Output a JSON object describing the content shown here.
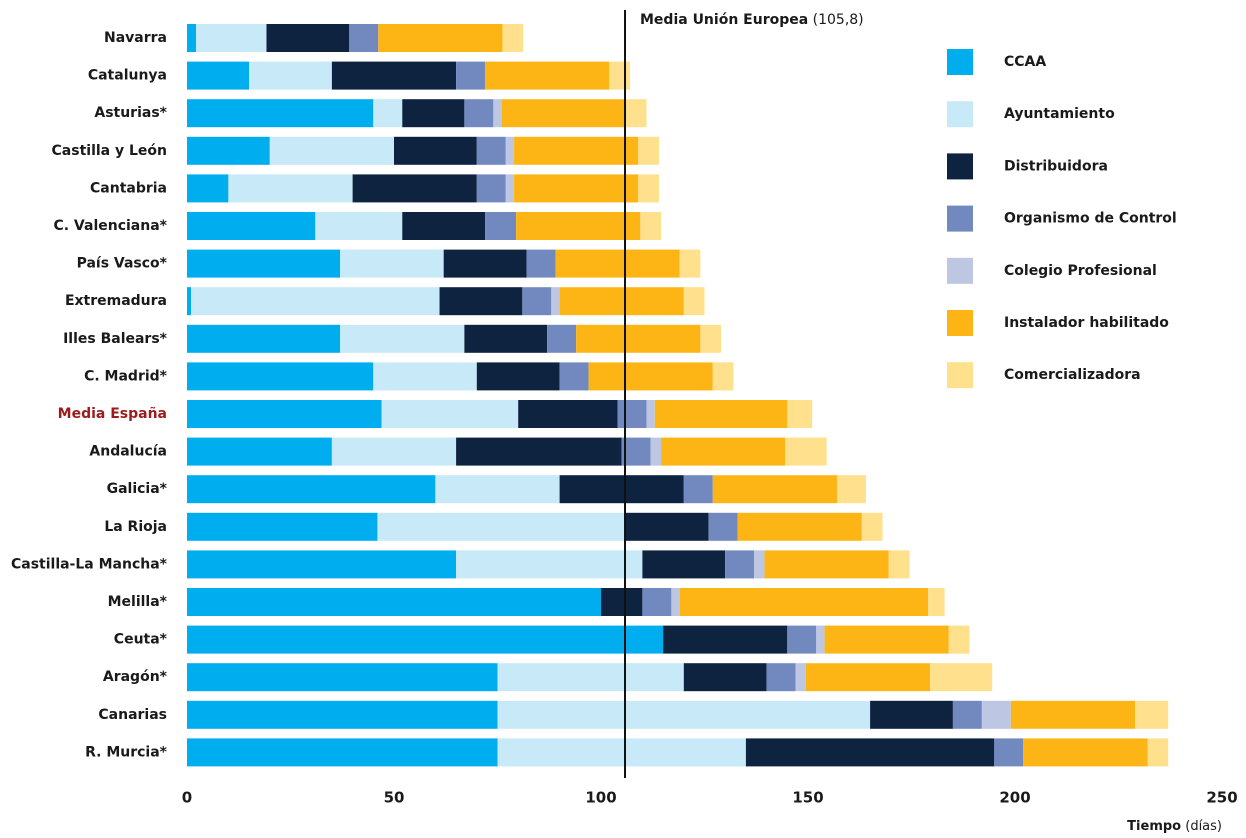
{
  "chart_data": {
    "type": "stacked-barh",
    "categories": [
      "Navarra",
      "Catalunya",
      "Asturias*",
      "Castilla y León",
      "Cantabria",
      "C. Valenciana*",
      "País Vasco*",
      "Extremadura",
      "Illes Balears*",
      "C. Madrid*",
      "Media España",
      "Andalucía",
      "Galicia*",
      "La Rioja",
      "Castilla-La Mancha*",
      "Melilla*",
      "Ceuta*",
      "Aragón*",
      "Canarias",
      "R. Murcia*"
    ],
    "highlight": {
      "index": 10,
      "color": "#9b1c1c"
    },
    "series": [
      {
        "name": "CCAA",
        "color": "#00aeef",
        "values": [
          2.2,
          15,
          45,
          20,
          10,
          31,
          37,
          1,
          37,
          45,
          47,
          35,
          60,
          46,
          65,
          100,
          115,
          75,
          75,
          75
        ]
      },
      {
        "name": "Ayuntamiento",
        "color": "#c8e9f8",
        "values": [
          17,
          20,
          7,
          30,
          30,
          21,
          25,
          60,
          30,
          25,
          33,
          30,
          30,
          60,
          45,
          0,
          0,
          45,
          90,
          60
        ]
      },
      {
        "name": "Distribuidora",
        "color": "#0d2340",
        "values": [
          20,
          30,
          15,
          20,
          30,
          20,
          20,
          20,
          20,
          20,
          24,
          40,
          30,
          20,
          20,
          10,
          30,
          20,
          20,
          60
        ]
      },
      {
        "name": "Organismo de Control",
        "color": "#7289bf",
        "values": [
          7,
          7,
          7,
          7,
          7,
          7.5,
          7,
          7,
          7,
          7,
          7,
          7,
          7,
          7,
          7,
          7,
          7,
          7,
          7,
          7
        ]
      },
      {
        "name": "Colegio Profesional",
        "color": "#bdc6e2",
        "values": [
          0,
          0,
          2,
          2,
          2,
          0,
          0,
          2,
          0,
          0,
          2,
          2.5,
          0,
          0,
          2.5,
          2,
          2,
          2.5,
          7,
          0
        ]
      },
      {
        "name": "Instalador habilitado",
        "color": "#fdb515",
        "values": [
          30,
          30,
          30,
          30,
          30,
          30,
          30,
          30,
          30,
          30,
          32,
          30,
          30,
          30,
          30,
          60,
          30,
          30,
          30,
          30
        ]
      },
      {
        "name": "Comercializadora",
        "color": "#ffe08c",
        "values": [
          5,
          5,
          5,
          5,
          5,
          5,
          5,
          5,
          5,
          5,
          6,
          10,
          7,
          5,
          5,
          4,
          5,
          15,
          8,
          5
        ]
      }
    ],
    "xlim": [
      0,
      250
    ],
    "xticks": [
      0,
      50,
      100,
      150,
      200,
      250
    ],
    "xlabel": "Tiempo",
    "xlabel_unit": "(días)",
    "annotation": {
      "text": "Media Unión Europea",
      "value_label": "(105,8)",
      "value": 105.8
    }
  }
}
